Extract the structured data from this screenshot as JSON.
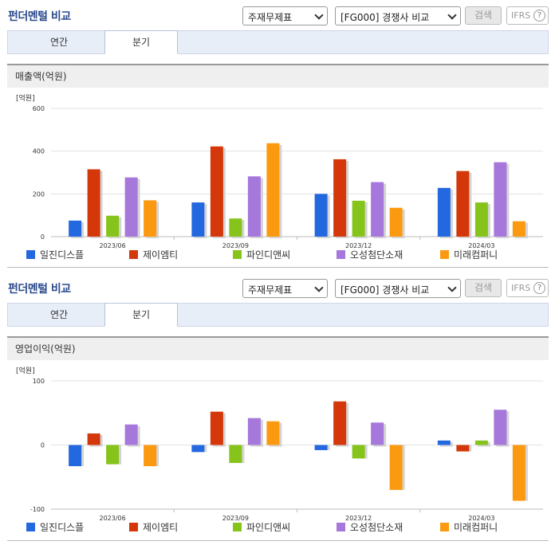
{
  "header": {
    "title": "펀더멘털 비교",
    "select_statement": "주재무제표",
    "select_peer": "[FG000] 경쟁사 비교",
    "search_label": "검색",
    "ifrs_label": "IFRS",
    "help_glyph": "?"
  },
  "tabs": [
    {
      "label": "연간",
      "active": false
    },
    {
      "label": "분기",
      "active": true
    }
  ],
  "colors": {
    "series": [
      "#2468e0",
      "#d4380a",
      "#86c41c",
      "#a678db",
      "#fb9a10"
    ],
    "title": "#2b4a8c"
  },
  "chart_data": [
    {
      "type": "bar",
      "title": "매출액(억원)",
      "unit_label": "[억원]",
      "categories": [
        "2023/06",
        "2023/09",
        "2023/12",
        "2024/03"
      ],
      "ylim": [
        0,
        600
      ],
      "yticks": [
        0,
        200,
        400,
        600
      ],
      "grid": true,
      "legend": "bottom",
      "series": [
        {
          "name": "일진디스플",
          "values": [
            75,
            160,
            200,
            228
          ]
        },
        {
          "name": "제이엠티",
          "values": [
            315,
            422,
            362,
            307
          ]
        },
        {
          "name": "파인디앤씨",
          "values": [
            98,
            85,
            168,
            160
          ]
        },
        {
          "name": "오성첨단소재",
          "values": [
            277,
            282,
            255,
            348
          ]
        },
        {
          "name": "미래컴퍼니",
          "values": [
            170,
            437,
            135,
            72
          ]
        }
      ]
    },
    {
      "type": "bar",
      "title": "영업이익(억원)",
      "unit_label": "[억원]",
      "categories": [
        "2023/06",
        "2023/09",
        "2023/12",
        "2024/03"
      ],
      "ylim": [
        -100,
        100
      ],
      "yticks": [
        -100,
        0,
        100
      ],
      "grid": true,
      "legend": "bottom",
      "series": [
        {
          "name": "일진디스플",
          "values": [
            -33,
            -11,
            -8,
            7
          ]
        },
        {
          "name": "제이엠티",
          "values": [
            18,
            52,
            68,
            -10
          ]
        },
        {
          "name": "파인디앤씨",
          "values": [
            -30,
            -28,
            -21,
            7
          ]
        },
        {
          "name": "오성첨단소재",
          "values": [
            32,
            42,
            35,
            55
          ]
        },
        {
          "name": "미래컴퍼니",
          "values": [
            -33,
            37,
            -70,
            -87
          ]
        }
      ]
    }
  ]
}
